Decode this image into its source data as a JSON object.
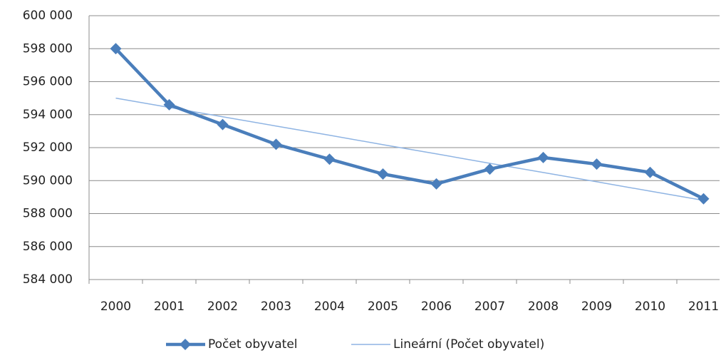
{
  "chart_data": {
    "type": "line",
    "categories": [
      "2000",
      "2001",
      "2002",
      "2003",
      "2004",
      "2005",
      "2006",
      "2007",
      "2008",
      "2009",
      "2010",
      "2011"
    ],
    "series": [
      {
        "name": "Počet obyvatel",
        "color": "#4a7ebb",
        "marker": "diamond",
        "values": [
          598000,
          594600,
          593400,
          592200,
          591300,
          590400,
          589800,
          590700,
          591400,
          591000,
          590500,
          588900
        ]
      },
      {
        "name": "Lineární (Počet obyvatel)",
        "color": "#8fb4e3",
        "values": [
          595000,
          594440,
          593870,
          593310,
          592750,
          592180,
          591620,
          591050,
          590490,
          589930,
          589360,
          588800
        ]
      }
    ],
    "ylim": [
      584000,
      600000
    ],
    "yticks": [
      {
        "value": 584000,
        "label": "584 000"
      },
      {
        "value": 586000,
        "label": "586 000"
      },
      {
        "value": 588000,
        "label": "588 000"
      },
      {
        "value": 590000,
        "label": "590 000"
      },
      {
        "value": 592000,
        "label": "592 000"
      },
      {
        "value": 594000,
        "label": "594 000"
      },
      {
        "value": 596000,
        "label": "596 000"
      },
      {
        "value": 598000,
        "label": "598 000"
      },
      {
        "value": 600000,
        "label": "600 000"
      }
    ],
    "grid": true,
    "legend": "bottom"
  }
}
